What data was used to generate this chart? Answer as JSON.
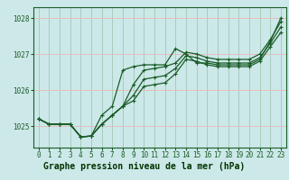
{
  "title": "Graphe pression niveau de la mer (hPa)",
  "background_color": "#cce8e8",
  "plot_bg_color": "#cce8e8",
  "footer_bg_color": "#5a9a6a",
  "grid_color_h": "#e8b8b8",
  "grid_color_v": "#a0c8b8",
  "line_color": "#1a5c28",
  "x_labels": [
    "0",
    "1",
    "2",
    "3",
    "4",
    "5",
    "6",
    "7",
    "8",
    "9",
    "10",
    "11",
    "12",
    "13",
    "14",
    "15",
    "16",
    "17",
    "18",
    "19",
    "20",
    "21",
    "22",
    "23"
  ],
  "y_ticks": [
    1025,
    1026,
    1027,
    1028
  ],
  "ylim": [
    1024.4,
    1028.3
  ],
  "xlim": [
    -0.5,
    23.5
  ],
  "series": [
    [
      1025.2,
      1025.05,
      1025.05,
      1025.05,
      1024.7,
      1024.72,
      1025.05,
      1025.3,
      1025.55,
      1026.15,
      1026.55,
      1026.6,
      1026.65,
      1026.75,
      1027.05,
      1027.0,
      1026.9,
      1026.85,
      1026.85,
      1026.85,
      1026.85,
      1027.0,
      1027.4,
      1027.9
    ],
    [
      1025.2,
      1025.05,
      1025.05,
      1025.05,
      1024.7,
      1024.72,
      1025.05,
      1025.3,
      1025.55,
      1025.85,
      1026.3,
      1026.35,
      1026.4,
      1026.6,
      1026.95,
      1026.9,
      1026.8,
      1026.75,
      1026.75,
      1026.75,
      1026.75,
      1026.9,
      1027.3,
      1027.75
    ],
    [
      1025.2,
      1025.05,
      1025.05,
      1025.05,
      1024.7,
      1024.72,
      1025.05,
      1025.3,
      1025.55,
      1025.7,
      1026.1,
      1026.15,
      1026.2,
      1026.45,
      1026.85,
      1026.8,
      1026.7,
      1026.65,
      1026.65,
      1026.65,
      1026.65,
      1026.8,
      1027.2,
      1027.6
    ],
    [
      1025.2,
      1025.05,
      1025.05,
      1025.05,
      1024.7,
      1024.72,
      1025.3,
      1025.55,
      1026.55,
      1026.65,
      1026.7,
      1026.7,
      1026.7,
      1027.15,
      1027.0,
      1026.75,
      1026.75,
      1026.7,
      1026.7,
      1026.7,
      1026.7,
      1026.85,
      1027.35,
      1028.0
    ]
  ],
  "marker": "+",
  "markersize": 3,
  "linewidth": 0.9,
  "title_fontsize": 7,
  "tick_fontsize": 5.5,
  "title_color": "#006600",
  "title_bg": "#88bb88"
}
